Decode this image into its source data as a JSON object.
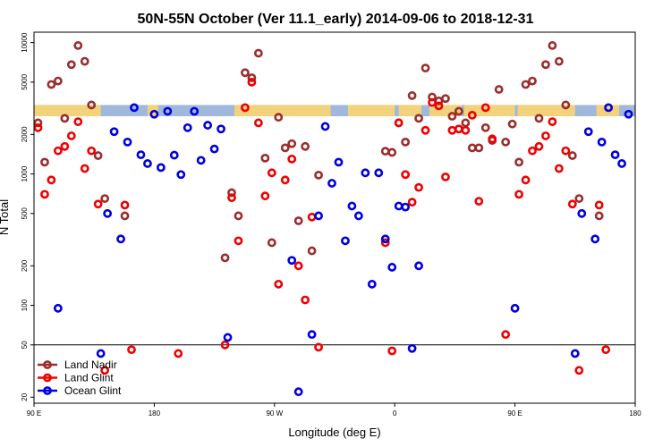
{
  "chart_data": {
    "type": "scatter",
    "title": "50N-55N October (Ver 11.1_early)   2014-09-06 to 2018-12-31",
    "xlabel": "Longitude (deg E)",
    "ylabel": "N Total",
    "x_ticks": [
      {
        "value": 90,
        "label": "90 E"
      },
      {
        "value": 180,
        "label": "180"
      },
      {
        "value": 270,
        "label": "90 W"
      },
      {
        "value": 360,
        "label": "0"
      },
      {
        "value": 450,
        "label": "90 E"
      },
      {
        "value": 540,
        "label": "180"
      }
    ],
    "y_ticks": [
      {
        "value": 20,
        "label": "20"
      },
      {
        "value": 50,
        "label": "50"
      },
      {
        "value": 100,
        "label": "100"
      },
      {
        "value": 200,
        "label": "200"
      },
      {
        "value": 500,
        "label": "500"
      },
      {
        "value": 1000,
        "label": "1000"
      },
      {
        "value": 2000,
        "label": "2000"
      },
      {
        "value": 5000,
        "label": "5000"
      },
      {
        "value": 10000,
        "label": "10000"
      }
    ],
    "xlim": [
      90,
      540
    ],
    "ylim": [
      18,
      12000
    ],
    "y_scale": "log",
    "reference_line_y": 50,
    "land_ocean_band": {
      "y_low": 2750,
      "y_high": 3350,
      "ocean_color": "#a0b8dc",
      "land_color": "#f3d27c",
      "land_segments": [
        [
          90,
          140
        ],
        [
          175,
          183
        ],
        [
          240,
          312
        ],
        [
          325,
          360
        ],
        [
          363,
          380
        ],
        [
          386,
          410
        ],
        [
          412,
          450
        ],
        [
          452,
          495
        ],
        [
          511,
          528
        ]
      ]
    },
    "legend": {
      "position": "bottom-left",
      "entries": [
        {
          "label": "Land Nadir",
          "color": "#9b2d2d"
        },
        {
          "label": "Land Glint",
          "color": "#f00000"
        },
        {
          "label": "Ocean Glint",
          "color": "#0000e0"
        }
      ]
    },
    "series": [
      {
        "name": "Land Nadir",
        "color": "#9b2d2d",
        "points": [
          [
            93,
            2450
          ],
          [
            98,
            1230
          ],
          [
            103,
            4800
          ],
          [
            108,
            5100
          ],
          [
            113,
            2650
          ],
          [
            118,
            6800
          ],
          [
            123,
            9500
          ],
          [
            128,
            7200
          ],
          [
            133,
            3350
          ],
          [
            138,
            1380
          ],
          [
            143,
            650
          ],
          [
            158,
            480
          ],
          [
            233,
            230
          ],
          [
            238,
            720
          ],
          [
            243,
            480
          ],
          [
            248,
            5900
          ],
          [
            253,
            5400
          ],
          [
            258,
            8300
          ],
          [
            263,
            1320
          ],
          [
            268,
            300
          ],
          [
            273,
            2700
          ],
          [
            278,
            1580
          ],
          [
            283,
            1700
          ],
          [
            288,
            440
          ],
          [
            293,
            1620
          ],
          [
            298,
            260
          ],
          [
            303,
            980
          ],
          [
            353,
            1490
          ],
          [
            358,
            1460
          ],
          [
            363,
            2450
          ],
          [
            368,
            1750
          ],
          [
            373,
            3950
          ],
          [
            378,
            2650
          ],
          [
            383,
            6400
          ],
          [
            388,
            3850
          ],
          [
            393,
            3600
          ],
          [
            398,
            3750
          ],
          [
            403,
            2750
          ],
          [
            408,
            3000
          ],
          [
            413,
            2450
          ],
          [
            418,
            1580
          ],
          [
            423,
            1580
          ],
          [
            428,
            2250
          ],
          [
            433,
            1800
          ],
          [
            438,
            4400
          ],
          [
            443,
            1750
          ],
          [
            448,
            2400
          ],
          [
            453,
            1230
          ],
          [
            458,
            4800
          ],
          [
            463,
            5100
          ],
          [
            468,
            2650
          ],
          [
            473,
            6800
          ],
          [
            478,
            9500
          ],
          [
            483,
            7200
          ],
          [
            488,
            3350
          ],
          [
            493,
            1380
          ],
          [
            498,
            650
          ],
          [
            513,
            480
          ]
        ]
      },
      {
        "name": "Land Glint",
        "color": "#f00000",
        "points": [
          [
            93,
            2250
          ],
          [
            98,
            700
          ],
          [
            103,
            900
          ],
          [
            108,
            1500
          ],
          [
            113,
            1620
          ],
          [
            118,
            1950
          ],
          [
            123,
            2500
          ],
          [
            128,
            1100
          ],
          [
            133,
            1500
          ],
          [
            138,
            590
          ],
          [
            143,
            32
          ],
          [
            158,
            580
          ],
          [
            163,
            46
          ],
          [
            198,
            43
          ],
          [
            233,
            50
          ],
          [
            238,
            660
          ],
          [
            243,
            310
          ],
          [
            248,
            3200
          ],
          [
            253,
            5000
          ],
          [
            258,
            2450
          ],
          [
            263,
            680
          ],
          [
            268,
            1020
          ],
          [
            273,
            145
          ],
          [
            278,
            900
          ],
          [
            283,
            1300
          ],
          [
            288,
            200
          ],
          [
            293,
            110
          ],
          [
            298,
            470
          ],
          [
            303,
            48
          ],
          [
            353,
            300
          ],
          [
            358,
            45
          ],
          [
            363,
            2450
          ],
          [
            368,
            990
          ],
          [
            373,
            610
          ],
          [
            378,
            790
          ],
          [
            383,
            2150
          ],
          [
            388,
            3500
          ],
          [
            393,
            3300
          ],
          [
            398,
            950
          ],
          [
            403,
            2150
          ],
          [
            408,
            2200
          ],
          [
            413,
            2150
          ],
          [
            418,
            2800
          ],
          [
            423,
            620
          ],
          [
            428,
            3200
          ],
          [
            433,
            1850
          ],
          [
            443,
            60
          ],
          [
            453,
            700
          ],
          [
            458,
            900
          ],
          [
            463,
            1500
          ],
          [
            468,
            1620
          ],
          [
            473,
            1950
          ],
          [
            478,
            2500
          ],
          [
            483,
            1100
          ],
          [
            488,
            1500
          ],
          [
            493,
            590
          ],
          [
            498,
            32
          ],
          [
            513,
            580
          ],
          [
            518,
            46
          ]
        ]
      },
      {
        "name": "Ocean Glint",
        "color": "#0000e0",
        "points": [
          [
            108,
            95
          ],
          [
            140,
            43
          ],
          [
            145,
            500
          ],
          [
            150,
            2100
          ],
          [
            155,
            320
          ],
          [
            160,
            1750
          ],
          [
            165,
            3200
          ],
          [
            170,
            1400
          ],
          [
            175,
            1200
          ],
          [
            180,
            2850
          ],
          [
            185,
            1120
          ],
          [
            190,
            3000
          ],
          [
            195,
            1390
          ],
          [
            200,
            990
          ],
          [
            205,
            2250
          ],
          [
            210,
            3000
          ],
          [
            215,
            1270
          ],
          [
            220,
            2350
          ],
          [
            225,
            1550
          ],
          [
            230,
            2200
          ],
          [
            235,
            57
          ],
          [
            283,
            220
          ],
          [
            288,
            22
          ],
          [
            298,
            60
          ],
          [
            303,
            480
          ],
          [
            308,
            2300
          ],
          [
            313,
            850
          ],
          [
            318,
            1230
          ],
          [
            323,
            310
          ],
          [
            328,
            570
          ],
          [
            333,
            480
          ],
          [
            338,
            1020
          ],
          [
            343,
            145
          ],
          [
            348,
            1020
          ],
          [
            353,
            320
          ],
          [
            358,
            195
          ],
          [
            363,
            570
          ],
          [
            368,
            560
          ],
          [
            373,
            47
          ],
          [
            378,
            200
          ],
          [
            495,
            43
          ],
          [
            500,
            500
          ],
          [
            505,
            2100
          ],
          [
            510,
            320
          ],
          [
            515,
            1750
          ],
          [
            520,
            3200
          ],
          [
            525,
            1400
          ],
          [
            530,
            1200
          ],
          [
            535,
            2850
          ],
          [
            450,
            95
          ]
        ]
      }
    ]
  }
}
